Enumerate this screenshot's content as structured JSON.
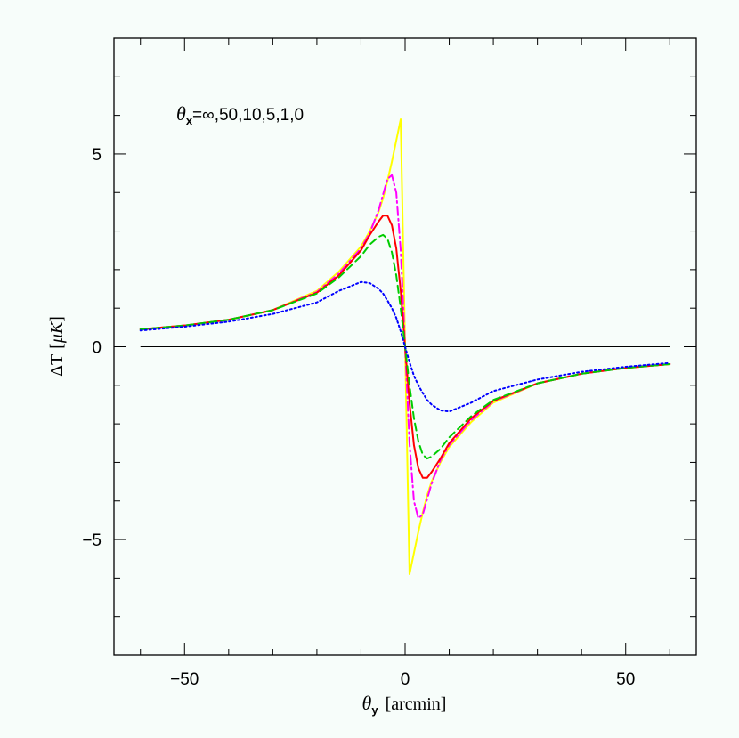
{
  "chart_data": {
    "type": "line",
    "annotation": {
      "theta_symbol": "θ",
      "theta_sub": "x",
      "values_text": "=∞,50,10,5,1,0"
    },
    "xlabel": {
      "symbol": "θ",
      "sub": "y",
      "units": "[arcmin]"
    },
    "ylabel": {
      "delta": "Δ",
      "symbol": "T",
      "units_open": "[",
      "mu": "μ",
      "unit": "K",
      "units_close": "]"
    },
    "xlim": [
      -66,
      66
    ],
    "ylim": [
      -8,
      8
    ],
    "x_ticks": [
      {
        "value": -50,
        "label": "−50"
      },
      {
        "value": 0,
        "label": "0"
      },
      {
        "value": 50,
        "label": "50"
      }
    ],
    "y_ticks": [
      {
        "value": -5,
        "label": "−5"
      },
      {
        "value": 0,
        "label": "0"
      },
      {
        "value": 5,
        "label": "5"
      }
    ],
    "x_minor_step": 10,
    "y_minor_step": 1,
    "zero_line": true,
    "grid": false,
    "legend": "none",
    "x": [
      -60,
      -50,
      -40,
      -30,
      -20,
      -15,
      -10,
      -8,
      -6,
      -5,
      -4,
      -3,
      -2,
      -1,
      0,
      1,
      2,
      3,
      4,
      5,
      6,
      8,
      10,
      15,
      20,
      30,
      40,
      50,
      60
    ],
    "series": [
      {
        "theta_x": "∞",
        "color": "#ffff00",
        "dash": "none",
        "values": [
          0.45,
          0.55,
          0.7,
          0.95,
          1.45,
          1.95,
          2.6,
          3.0,
          3.5,
          3.85,
          4.3,
          4.8,
          5.35,
          5.9,
          0,
          -5.9,
          -5.35,
          -4.8,
          -4.3,
          -3.85,
          -3.5,
          -3.0,
          -2.6,
          -1.95,
          -1.45,
          -0.95,
          -0.7,
          -0.55,
          -0.45
        ]
      },
      {
        "theta_x": "50",
        "color": "#ff00ff",
        "dash": "10,4,2,4",
        "values": [
          0.45,
          0.55,
          0.7,
          0.95,
          1.42,
          1.9,
          2.55,
          2.95,
          3.55,
          3.95,
          4.35,
          4.45,
          4.0,
          2.5,
          0,
          -2.5,
          -4.0,
          -4.45,
          -4.35,
          -3.95,
          -3.55,
          -2.95,
          -2.55,
          -1.9,
          -1.42,
          -0.95,
          -0.7,
          -0.55,
          -0.45
        ]
      },
      {
        "theta_x": "10",
        "color": "#ff0000",
        "dash": "none",
        "values": [
          0.45,
          0.55,
          0.7,
          0.95,
          1.4,
          1.85,
          2.5,
          2.9,
          3.25,
          3.4,
          3.4,
          3.15,
          2.55,
          1.45,
          0,
          -1.45,
          -2.55,
          -3.15,
          -3.4,
          -3.4,
          -3.25,
          -2.9,
          -2.5,
          -1.85,
          -1.4,
          -0.95,
          -0.7,
          -0.55,
          -0.45
        ]
      },
      {
        "theta_x": "5",
        "color": "#00cc00",
        "dash": "8,5",
        "values": [
          0.45,
          0.55,
          0.7,
          0.95,
          1.38,
          1.8,
          2.35,
          2.65,
          2.85,
          2.9,
          2.8,
          2.45,
          1.85,
          1.0,
          0,
          -1.0,
          -1.85,
          -2.45,
          -2.8,
          -2.9,
          -2.85,
          -2.65,
          -2.35,
          -1.8,
          -1.38,
          -0.95,
          -0.7,
          -0.55,
          -0.45
        ]
      },
      {
        "theta_x": "1",
        "color": "#0000ff",
        "dash": "2,3",
        "values": [
          0.42,
          0.52,
          0.65,
          0.85,
          1.15,
          1.45,
          1.68,
          1.65,
          1.5,
          1.38,
          1.2,
          1.0,
          0.75,
          0.4,
          0,
          -0.4,
          -0.75,
          -1.0,
          -1.2,
          -1.38,
          -1.5,
          -1.65,
          -1.68,
          -1.45,
          -1.15,
          -0.85,
          -0.65,
          -0.52,
          -0.42
        ]
      }
    ]
  }
}
